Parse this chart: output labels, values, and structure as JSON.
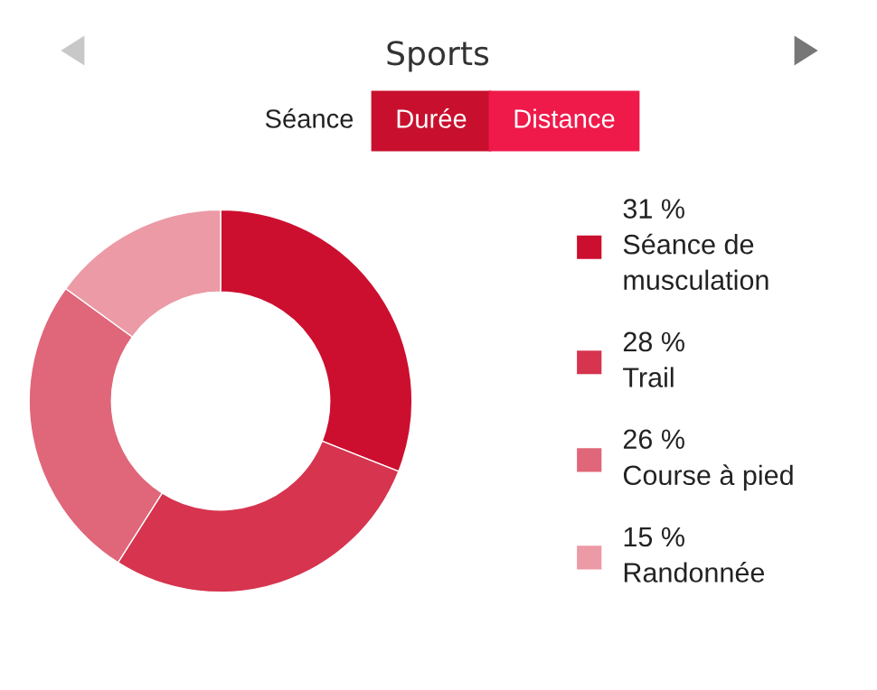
{
  "chart_data": {
    "type": "donut",
    "title": "Sports",
    "categories": [
      "Séance de musculation",
      "Trail",
      "Course à pied",
      "Randonnée"
    ],
    "values": [
      31,
      28,
      26,
      15
    ],
    "value_labels": [
      "31 %",
      "28 %",
      "26 %",
      "15 %"
    ],
    "colors": [
      "#cc0f2f",
      "#d6344f",
      "#e06679",
      "#eb9aa6"
    ],
    "legend": "right",
    "annotations": [
      "Séance",
      "Durée",
      "Distance"
    ]
  }
}
